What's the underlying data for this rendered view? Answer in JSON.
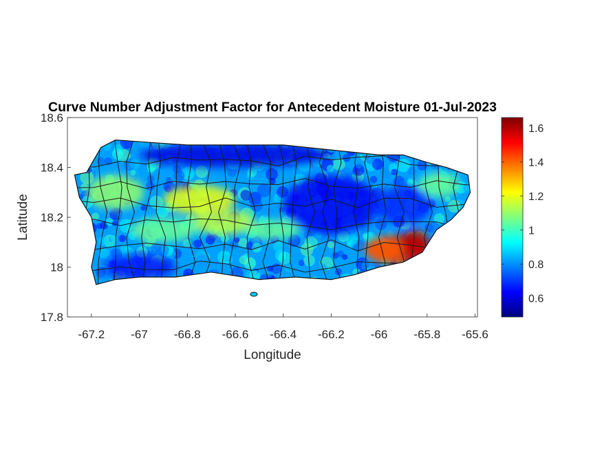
{
  "chart_data": {
    "type": "heatmap",
    "title": "Curve Number Adjustment Factor for Antecedent Moisture 01-Jul-2023",
    "xlabel": "Longitude",
    "ylabel": "Latitude",
    "xlim": [
      -67.3,
      -65.59
    ],
    "ylim": [
      17.8,
      18.6
    ],
    "xticks": [
      -67.2,
      -67,
      -66.8,
      -66.6,
      -66.4,
      -66.2,
      -66,
      -65.8,
      -65.6
    ],
    "xtick_labels": [
      "-67.2",
      "-67",
      "-66.8",
      "-66.6",
      "-66.4",
      "-66.2",
      "-66",
      "-65.8",
      "-65.6"
    ],
    "yticks": [
      17.8,
      18,
      18.2,
      18.4,
      18.6
    ],
    "ytick_labels": [
      "17.8",
      "18",
      "18.2",
      "18.4",
      "18.6"
    ],
    "colorbar": {
      "colormap": "jet",
      "range": [
        0.49,
        1.66
      ],
      "ticks": [
        0.6,
        0.8,
        1,
        1.2,
        1.4,
        1.6
      ],
      "tick_labels": [
        "0.6",
        "0.8",
        "1",
        "1.2",
        "1.4",
        "1.6"
      ]
    },
    "grid": false,
    "outline": [
      [
        -67.27,
        18.37
      ],
      [
        -67.22,
        18.38
      ],
      [
        -67.19,
        18.43
      ],
      [
        -67.16,
        18.48
      ],
      [
        -67.1,
        18.51
      ],
      [
        -66.95,
        18.5
      ],
      [
        -66.8,
        18.49
      ],
      [
        -66.6,
        18.49
      ],
      [
        -66.4,
        18.49
      ],
      [
        -66.2,
        18.47
      ],
      [
        -66.0,
        18.45
      ],
      [
        -65.9,
        18.45
      ],
      [
        -65.8,
        18.42
      ],
      [
        -65.72,
        18.4
      ],
      [
        -65.63,
        18.37
      ],
      [
        -65.62,
        18.3
      ],
      [
        -65.65,
        18.24
      ],
      [
        -65.7,
        18.19
      ],
      [
        -65.76,
        18.15
      ],
      [
        -65.82,
        18.06
      ],
      [
        -65.9,
        18.02
      ],
      [
        -66.0,
        18.0
      ],
      [
        -66.1,
        17.97
      ],
      [
        -66.2,
        17.95
      ],
      [
        -66.35,
        17.96
      ],
      [
        -66.5,
        17.95
      ],
      [
        -66.7,
        17.98
      ],
      [
        -66.85,
        17.96
      ],
      [
        -67.0,
        17.96
      ],
      [
        -67.1,
        17.95
      ],
      [
        -67.18,
        17.93
      ],
      [
        -67.2,
        18.0
      ],
      [
        -67.18,
        18.1
      ],
      [
        -67.2,
        18.2
      ],
      [
        -67.25,
        18.28
      ]
    ],
    "moisture_features": [
      {
        "lon": -65.92,
        "lat": 18.07,
        "value": 1.55,
        "extent": [
          0.14,
          0.06
        ]
      },
      {
        "lon": -65.85,
        "lat": 18.1,
        "value": 1.6,
        "extent": [
          0.06,
          0.05
        ]
      },
      {
        "lon": -65.98,
        "lat": 18.07,
        "value": 1.4,
        "extent": [
          0.08,
          0.05
        ]
      },
      {
        "lon": -66.75,
        "lat": 18.27,
        "value": 1.2,
        "extent": [
          0.15,
          0.06
        ]
      },
      {
        "lon": -66.65,
        "lat": 18.18,
        "value": 1.15,
        "extent": [
          0.13,
          0.05
        ]
      },
      {
        "lon": -67.1,
        "lat": 18.3,
        "value": 1.1,
        "extent": [
          0.12,
          0.07
        ]
      },
      {
        "lon": -66.9,
        "lat": 18.15,
        "value": 1.05,
        "extent": [
          0.14,
          0.05
        ]
      },
      {
        "lon": -66.45,
        "lat": 18.15,
        "value": 1.05,
        "extent": [
          0.12,
          0.04
        ]
      },
      {
        "lon": -65.75,
        "lat": 18.33,
        "value": 1.05,
        "extent": [
          0.09,
          0.05
        ]
      },
      {
        "lon": -66.2,
        "lat": 18.25,
        "value": 0.62,
        "extent": [
          0.2,
          0.12
        ]
      },
      {
        "lon": -66.6,
        "lat": 18.45,
        "value": 0.6,
        "extent": [
          0.4,
          0.05
        ]
      },
      {
        "lon": -67.0,
        "lat": 18.0,
        "value": 0.65,
        "extent": [
          0.15,
          0.05
        ]
      },
      {
        "lon": -65.9,
        "lat": 18.25,
        "value": 0.68,
        "extent": [
          0.12,
          0.08
        ]
      }
    ]
  }
}
